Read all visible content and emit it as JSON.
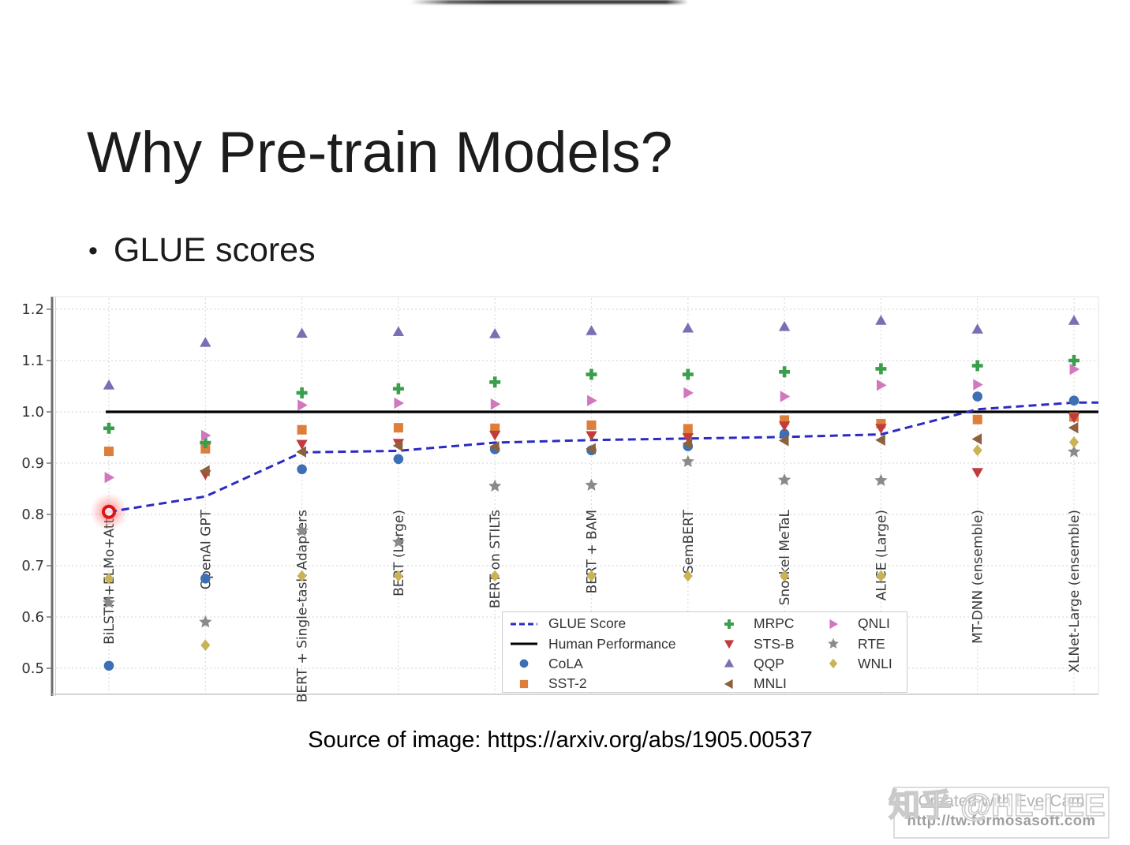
{
  "page": {
    "title": "Why Pre-train Models?",
    "bullet_marker": "•",
    "bullet": "GLUE scores",
    "source_caption": "Source of image: https://arxiv.org/abs/1905.00537"
  },
  "watermark": {
    "zhihu_text": "知乎 @HL-LEE",
    "creator_line1": "Created with EverCam",
    "creator_line2": "http://tw.formosasoft.com"
  },
  "chart_data": {
    "type": "scatter",
    "title": "GLUE scores",
    "xlabel": "",
    "ylabel": "",
    "ylim": [
      0.45,
      1.22
    ],
    "yticks": [
      0.5,
      0.6,
      0.7,
      0.8,
      0.9,
      1.0,
      1.1,
      1.2
    ],
    "grid": true,
    "legend_position": "inside lower-right",
    "categories": [
      "BiLSTM+ELMo+Attn",
      "OpenAI GPT",
      "BERT + Single-task Adapters",
      "BERT (Large)",
      "BERT on STILTs",
      "BERT + BAM",
      "SemBERT",
      "Snorkel MeTaL",
      "ALICE (Large)",
      "MT-DNN (ensemble)",
      "XLNet-Large (ensemble)"
    ],
    "glue_line": {
      "label": "GLUE Score",
      "color": "#2b2bc4",
      "style": "dashed",
      "values": [
        0.805,
        0.835,
        0.921,
        0.924,
        0.94,
        0.945,
        0.948,
        0.951,
        0.956,
        1.005,
        1.018
      ]
    },
    "human_line": {
      "label": "Human Performance",
      "color": "#000000",
      "style": "solid",
      "value": 1.0
    },
    "series": [
      {
        "name": "CoLA",
        "marker": "circle",
        "color": "#3d6fb5",
        "values": [
          0.505,
          0.675,
          0.888,
          0.908,
          0.927,
          0.925,
          0.933,
          0.957,
          null,
          1.03,
          1.022
        ]
      },
      {
        "name": "SST-2",
        "marker": "square",
        "color": "#dd7e3b",
        "values": [
          0.923,
          0.928,
          0.965,
          0.969,
          0.968,
          0.974,
          0.967,
          0.984,
          0.977,
          0.985,
          0.99
        ]
      },
      {
        "name": "MRPC",
        "marker": "plus",
        "color": "#3a9e4c",
        "values": [
          0.968,
          0.94,
          1.037,
          1.045,
          1.058,
          1.073,
          1.073,
          1.078,
          1.084,
          1.09,
          1.1
        ]
      },
      {
        "name": "STS-B",
        "marker": "triangle-down",
        "color": "#c13c3c",
        "values": [
          null,
          0.878,
          0.937,
          0.939,
          0.955,
          0.954,
          0.95,
          0.973,
          0.968,
          0.882,
          0.989
        ]
      },
      {
        "name": "QQP",
        "marker": "triangle-up",
        "color": "#7a6fb3",
        "values": [
          1.052,
          1.135,
          1.153,
          1.156,
          1.152,
          1.158,
          1.163,
          1.166,
          1.178,
          1.161,
          1.178
        ]
      },
      {
        "name": "MNLI",
        "marker": "triangle-left",
        "color": "#8c613c",
        "values": [
          null,
          0.885,
          0.922,
          0.934,
          0.932,
          0.928,
          0.938,
          0.944,
          0.945,
          0.947,
          0.969
        ]
      },
      {
        "name": "QNLI",
        "marker": "triangle-right",
        "color": "#d177be",
        "values": [
          0.872,
          0.954,
          1.013,
          1.017,
          1.015,
          1.022,
          1.037,
          1.03,
          1.052,
          1.053,
          1.083
        ]
      },
      {
        "name": "RTE",
        "marker": "star",
        "color": "#8a8a8a",
        "values": [
          0.628,
          0.59,
          0.768,
          0.746,
          0.855,
          0.857,
          0.903,
          0.867,
          0.866,
          null,
          0.922
        ]
      },
      {
        "name": "WNLI",
        "marker": "diamond",
        "color": "#c9b357",
        "values": [
          0.675,
          0.545,
          0.68,
          0.68,
          0.68,
          0.68,
          0.68,
          0.68,
          0.68,
          0.925,
          0.941
        ]
      }
    ],
    "legend": {
      "columns": [
        [
          "GLUE Score",
          "Human Performance",
          "CoLA",
          "SST-2"
        ],
        [
          "MRPC",
          "STS-B",
          "QQP",
          "MNLI"
        ],
        [
          "QNLI",
          "RTE",
          "WNLI"
        ]
      ]
    },
    "highlight": {
      "category_index": 0,
      "value": 0.805,
      "color": "#e01313"
    }
  }
}
